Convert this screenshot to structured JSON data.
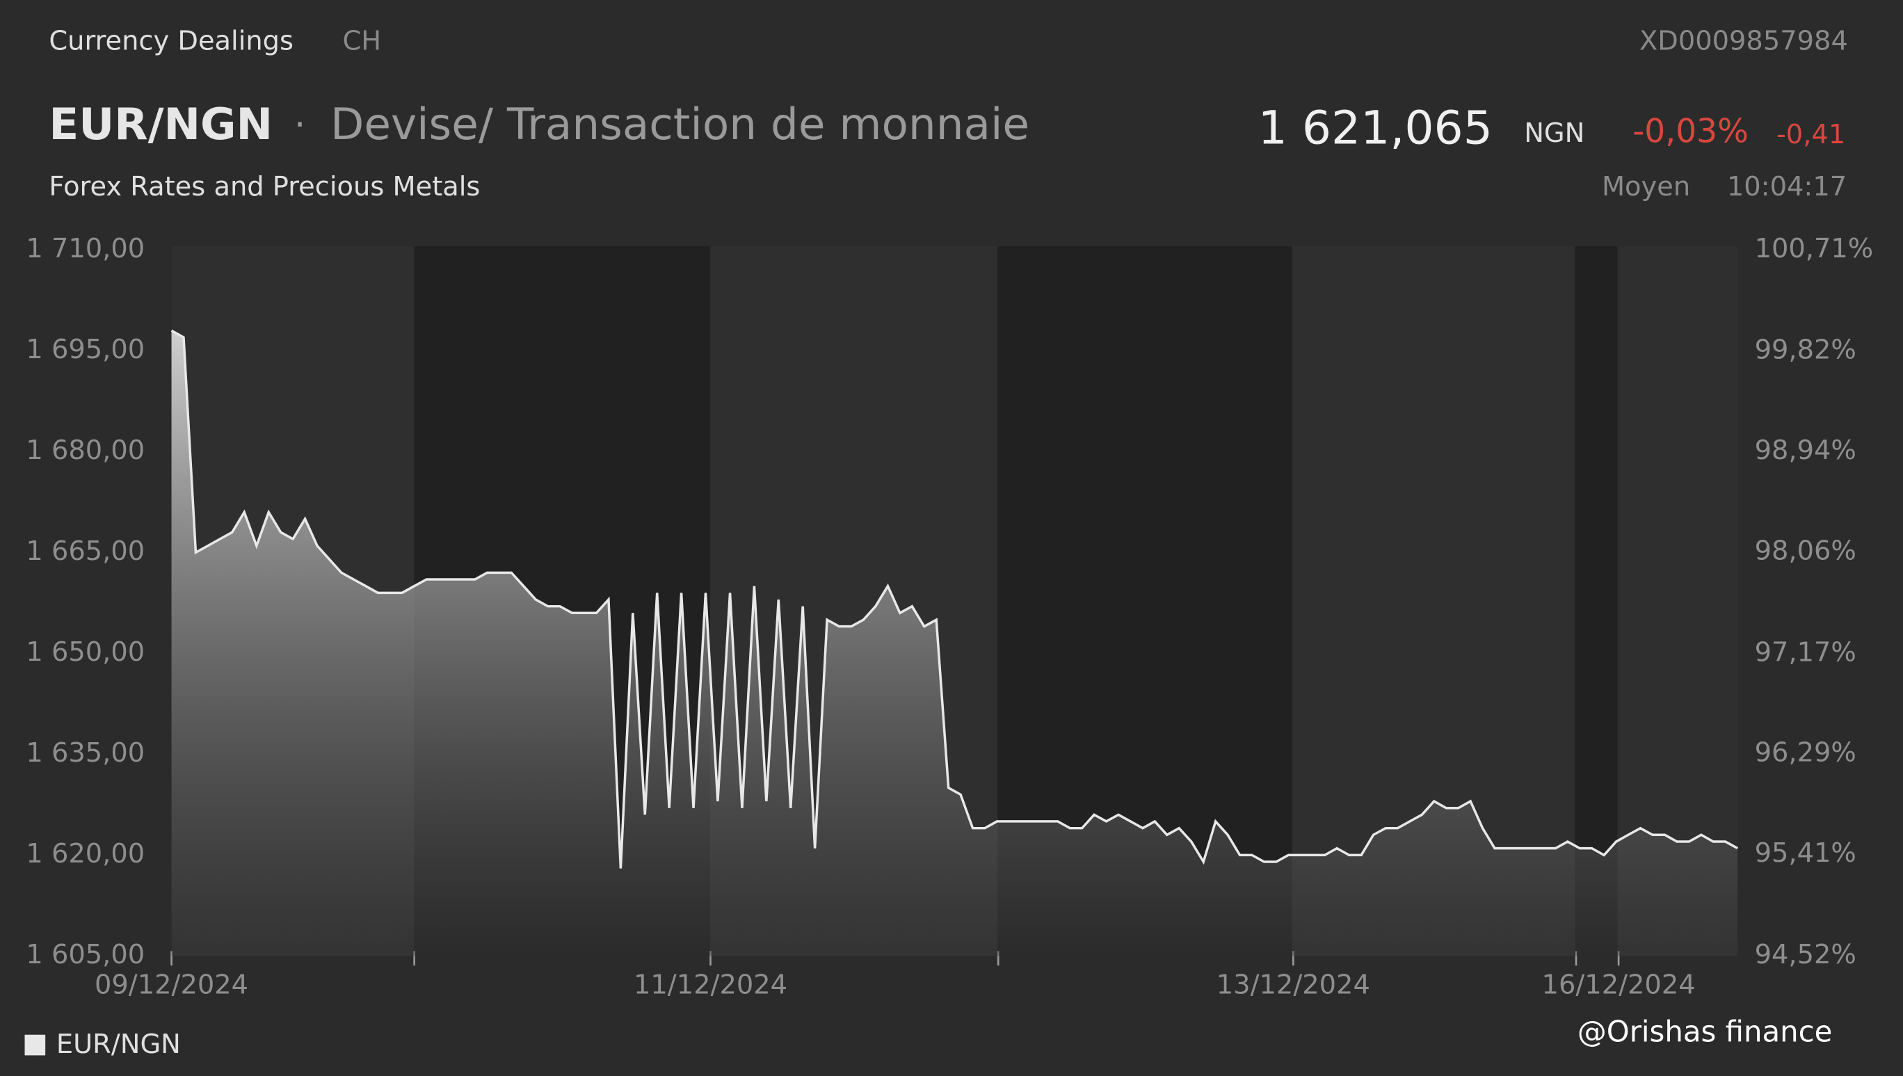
{
  "header": {
    "source": "Currency Dealings",
    "market": "CH",
    "code": "XD0009857984",
    "symbol": "EUR/NGN",
    "separator": "·",
    "description": "Devise/ Transaction de monnaie",
    "price": "1 621,065",
    "currency": "NGN",
    "change_pct": "-0,03%",
    "change": "-0,41",
    "subtitle": "Forex Rates and Precious Metals",
    "price_type": "Moyen",
    "time": "10:04:17"
  },
  "chart_data": {
    "type": "area",
    "series": [
      {
        "name": "EUR/NGN",
        "color": "#e8e8e8",
        "values": [
          1698,
          1697,
          1665,
          1666,
          1667,
          1668,
          1671,
          1666,
          1671,
          1668,
          1667,
          1670,
          1666,
          1664,
          1662,
          1661,
          1660,
          1659,
          1659,
          1659,
          1660,
          1661,
          1661,
          1661,
          1661,
          1661,
          1662,
          1662,
          1662,
          1660,
          1658,
          1657,
          1657,
          1656,
          1656,
          1656,
          1658,
          1618,
          1656,
          1626,
          1659,
          1627,
          1659,
          1627,
          1659,
          1628,
          1659,
          1627,
          1660,
          1628,
          1658,
          1627,
          1657,
          1621,
          1655,
          1654,
          1654,
          1655,
          1657,
          1660,
          1656,
          1657,
          1654,
          1655,
          1630,
          1629,
          1624,
          1624,
          1625,
          1625,
          1625,
          1625,
          1625,
          1625,
          1624,
          1624,
          1626,
          1625,
          1626,
          1625,
          1624,
          1625,
          1623,
          1624,
          1622,
          1619,
          1625,
          1623,
          1620,
          1620,
          1619,
          1619,
          1620,
          1620,
          1620,
          1620,
          1621,
          1620,
          1620,
          1623,
          1624,
          1624,
          1625,
          1626,
          1628,
          1627,
          1627,
          1628,
          1624,
          1621,
          1621,
          1621,
          1621,
          1621,
          1621,
          1622,
          1621,
          1621,
          1620,
          1622,
          1623,
          1624,
          1623,
          1623,
          1622,
          1622,
          1623,
          1622,
          1622,
          1621
        ]
      }
    ],
    "xlim": [
      0,
      129
    ],
    "xticks": [
      {
        "value": 0,
        "label": "09/12/2024"
      },
      {
        "value": 20,
        "label": null
      },
      {
        "value": 44.4,
        "label": "11/12/2024"
      },
      {
        "value": 68.1,
        "label": null
      },
      {
        "value": 92.4,
        "label": "13/12/2024"
      },
      {
        "value": 115.7,
        "label": null
      },
      {
        "value": 119.2,
        "label": "16/12/2024"
      }
    ],
    "ylim": [
      1605,
      1710
    ],
    "yticks": [
      {
        "value": 1605,
        "label": "1 605,00"
      },
      {
        "value": 1620,
        "label": "1 620,00"
      },
      {
        "value": 1635,
        "label": "1 635,00"
      },
      {
        "value": 1650,
        "label": "1 650,00"
      },
      {
        "value": 1665,
        "label": "1 665,00"
      },
      {
        "value": 1680,
        "label": "1 680,00"
      },
      {
        "value": 1695,
        "label": "1 695,00"
      },
      {
        "value": 1710,
        "label": "1 710,00"
      }
    ],
    "y2lim": [
      94.52,
      100.71
    ],
    "y2ticks": [
      {
        "value": 94.52,
        "label": "94,52%"
      },
      {
        "value": 95.41,
        "label": "95,41%"
      },
      {
        "value": 96.29,
        "label": "96,29%"
      },
      {
        "value": 97.17,
        "label": "97,17%"
      },
      {
        "value": 98.06,
        "label": "98,06%"
      },
      {
        "value": 98.94,
        "label": "98,94%"
      },
      {
        "value": 99.82,
        "label": "99,82%"
      },
      {
        "value": 100.71,
        "label": "100,71%"
      }
    ],
    "legend": "bottom-left",
    "watermark": "@Orishas finance"
  }
}
